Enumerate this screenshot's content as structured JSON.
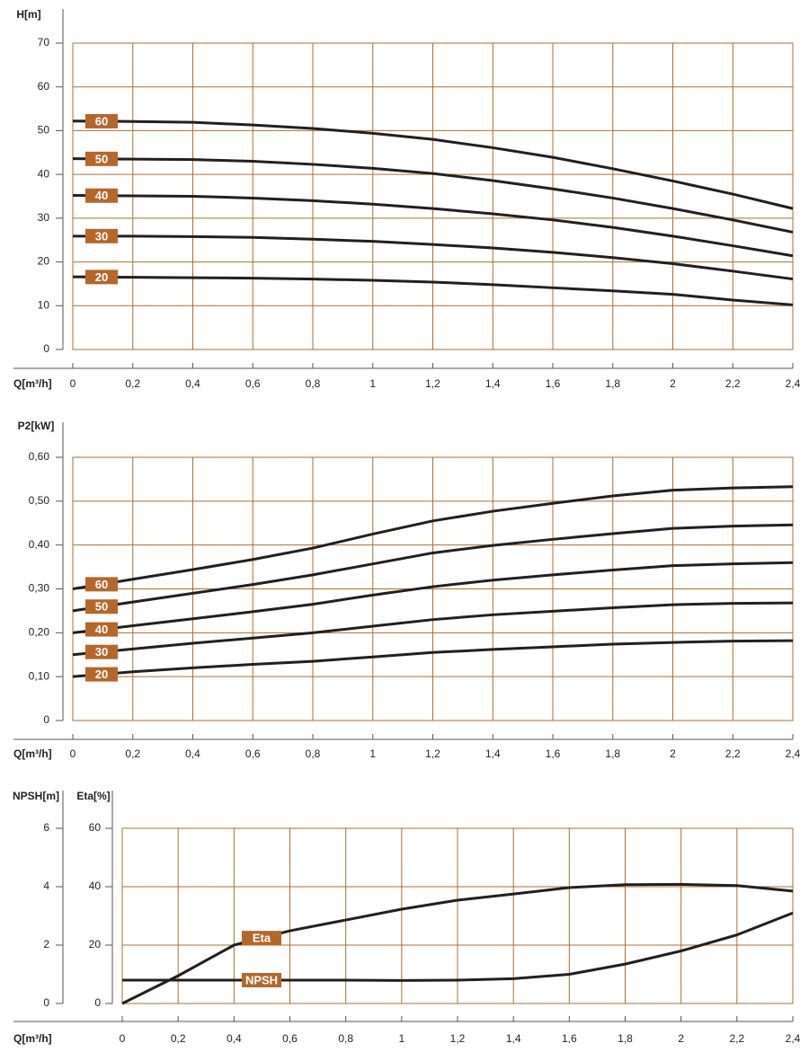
{
  "chart_data": [
    {
      "type": "line",
      "y_label": "H[m]",
      "x_label": "Q[m³/h]",
      "x": [
        0,
        0.2,
        0.4,
        0.6,
        0.8,
        1.0,
        1.2,
        1.4,
        1.6,
        1.8,
        2.0,
        2.2,
        2.4
      ],
      "xlim": [
        0,
        2.4
      ],
      "xticks": [
        0,
        {
          "value": 0.2,
          "label": "0,2"
        },
        {
          "value": 0.4,
          "label": "0,4"
        },
        {
          "value": 0.6,
          "label": "0,6"
        },
        {
          "value": 0.8,
          "label": "0,8"
        },
        1,
        {
          "value": 1.2,
          "label": "1,2"
        },
        {
          "value": 1.4,
          "label": "1,4"
        },
        {
          "value": 1.6,
          "label": "1,6"
        },
        {
          "value": 1.8,
          "label": "1,8"
        },
        2,
        {
          "value": 2.2,
          "label": "2,2"
        },
        {
          "value": 2.4,
          "label": "2,4"
        }
      ],
      "ylim": [
        0,
        70
      ],
      "yticks": [
        0,
        10,
        20,
        30,
        40,
        50,
        60,
        70
      ],
      "grid": true,
      "series": [
        {
          "name": "60",
          "color": "#231f20",
          "values": [
            52.2,
            52.1,
            51.9,
            51.3,
            50.5,
            49.4,
            48.0,
            46.1,
            43.9,
            41.3,
            38.5,
            35.5,
            32.2
          ]
        },
        {
          "name": "50",
          "color": "#231f20",
          "values": [
            43.6,
            43.5,
            43.4,
            43.0,
            42.3,
            41.4,
            40.2,
            38.6,
            36.7,
            34.6,
            32.2,
            29.6,
            26.8
          ]
        },
        {
          "name": "40",
          "color": "#231f20",
          "values": [
            35.2,
            35.1,
            35.0,
            34.6,
            34.0,
            33.2,
            32.2,
            31.0,
            29.6,
            27.9,
            25.9,
            23.7,
            21.4
          ]
        },
        {
          "name": "30",
          "color": "#231f20",
          "values": [
            25.9,
            25.9,
            25.8,
            25.6,
            25.2,
            24.7,
            24.0,
            23.2,
            22.2,
            21.0,
            19.6,
            17.9,
            16.1
          ]
        },
        {
          "name": "20",
          "color": "#231f20",
          "values": [
            16.6,
            16.5,
            16.4,
            16.3,
            16.1,
            15.8,
            15.4,
            14.8,
            14.1,
            13.4,
            12.6,
            11.3,
            10.2
          ]
        }
      ]
    },
    {
      "type": "line",
      "y_label": "P2[kW]",
      "x_label": "Q[m³/h]",
      "x": [
        0,
        0.2,
        0.4,
        0.6,
        0.8,
        1.0,
        1.2,
        1.4,
        1.6,
        1.8,
        2.0,
        2.2,
        2.4
      ],
      "xlim": [
        0,
        2.4
      ],
      "xticks": [
        0,
        {
          "value": 0.2,
          "label": "0,2"
        },
        {
          "value": 0.4,
          "label": "0,4"
        },
        {
          "value": 0.6,
          "label": "0,6"
        },
        {
          "value": 0.8,
          "label": "0,8"
        },
        1,
        {
          "value": 1.2,
          "label": "1,2"
        },
        {
          "value": 1.4,
          "label": "1,4"
        },
        {
          "value": 1.6,
          "label": "1,6"
        },
        {
          "value": 1.8,
          "label": "1,8"
        },
        2,
        {
          "value": 2.2,
          "label": "2,2"
        },
        {
          "value": 2.4,
          "label": "2,4"
        }
      ],
      "ylim": [
        0,
        0.6
      ],
      "yticks": [
        0,
        {
          "value": 0.1,
          "label": "0,10"
        },
        {
          "value": 0.2,
          "label": "0,20"
        },
        {
          "value": 0.3,
          "label": "0,30"
        },
        {
          "value": 0.4,
          "label": "0,40"
        },
        {
          "value": 0.5,
          "label": "0,50"
        },
        {
          "value": 0.6,
          "label": "0,60"
        }
      ],
      "grid": true,
      "series": [
        {
          "name": "60",
          "color": "#231f20",
          "values": [
            0.3,
            0.322,
            0.344,
            0.367,
            0.393,
            0.425,
            0.455,
            0.477,
            0.495,
            0.512,
            0.525,
            0.53,
            0.533
          ]
        },
        {
          "name": "50",
          "color": "#231f20",
          "values": [
            0.25,
            0.27,
            0.29,
            0.31,
            0.332,
            0.357,
            0.382,
            0.399,
            0.413,
            0.426,
            0.438,
            0.443,
            0.446
          ]
        },
        {
          "name": "40",
          "color": "#231f20",
          "values": [
            0.2,
            0.216,
            0.232,
            0.248,
            0.265,
            0.286,
            0.305,
            0.32,
            0.332,
            0.343,
            0.353,
            0.357,
            0.36
          ]
        },
        {
          "name": "30",
          "color": "#231f20",
          "values": [
            0.15,
            0.163,
            0.176,
            0.188,
            0.2,
            0.215,
            0.23,
            0.241,
            0.249,
            0.257,
            0.264,
            0.267,
            0.268
          ]
        },
        {
          "name": "20",
          "color": "#231f20",
          "values": [
            0.1,
            0.111,
            0.12,
            0.128,
            0.135,
            0.145,
            0.155,
            0.162,
            0.168,
            0.174,
            0.178,
            0.181,
            0.182
          ]
        }
      ]
    },
    {
      "type": "line",
      "y_label": "NPSH[m]",
      "y2_label": "Eta[%]",
      "x_label": "Q[m³/h]",
      "x": [
        0,
        0.2,
        0.4,
        0.6,
        0.8,
        1.0,
        1.2,
        1.4,
        1.6,
        1.8,
        2.0,
        2.2,
        2.4
      ],
      "xlim": [
        0,
        2.4
      ],
      "xticks": [
        0,
        {
          "value": 0.2,
          "label": "0,2"
        },
        {
          "value": 0.4,
          "label": "0,4"
        },
        {
          "value": 0.6,
          "label": "0,6"
        },
        {
          "value": 0.8,
          "label": "0,8"
        },
        1,
        {
          "value": 1.2,
          "label": "1,2"
        },
        {
          "value": 1.4,
          "label": "1,4"
        },
        {
          "value": 1.6,
          "label": "1,6"
        },
        {
          "value": 1.8,
          "label": "1,8"
        },
        2,
        {
          "value": 2.2,
          "label": "2,2"
        },
        {
          "value": 2.4,
          "label": "2,4"
        }
      ],
      "ylim": [
        0,
        6
      ],
      "yticks": [
        0,
        2,
        4,
        6
      ],
      "y2lim": [
        0,
        60
      ],
      "y2ticks": [
        0,
        20,
        40,
        60
      ],
      "grid": true,
      "series": [
        {
          "name": "Eta",
          "color": "#231f20",
          "axis": "y2",
          "values": [
            0,
            9.5,
            20.0,
            24.9,
            28.6,
            32.3,
            35.4,
            37.5,
            39.7,
            40.7,
            40.8,
            40.4,
            38.5
          ]
        },
        {
          "name": "NPSH",
          "color": "#231f20",
          "values": [
            0.8,
            0.8,
            0.8,
            0.8,
            0.8,
            0.79,
            0.8,
            0.85,
            1.0,
            1.35,
            1.8,
            2.35,
            3.1
          ]
        }
      ]
    }
  ]
}
